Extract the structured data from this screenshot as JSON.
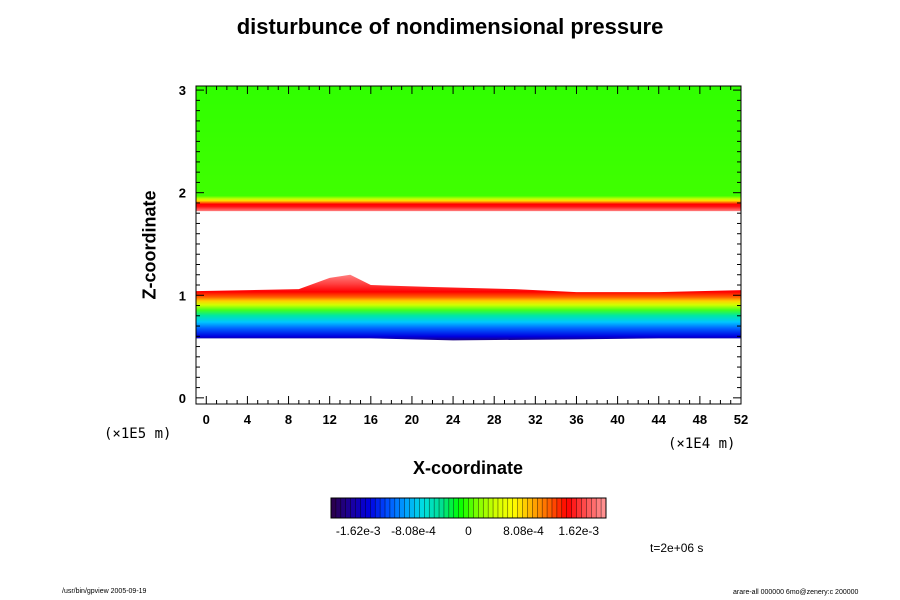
{
  "chart_data": {
    "type": "heatmap",
    "title": "disturbunce of nondimensional pressure",
    "xlabel": "X-coordinate",
    "ylabel": "Z-coordinate",
    "x_unit": "(×1E4  m)",
    "y_unit": "(×1E5  m)",
    "xlim": [
      -1,
      52
    ],
    "ylim": [
      -0.06,
      3.04
    ],
    "x_ticks": [
      0,
      4,
      8,
      12,
      16,
      20,
      24,
      28,
      32,
      36,
      40,
      44,
      48,
      52
    ],
    "y_ticks": [
      0,
      1,
      2,
      3
    ],
    "x_tick_labels": [
      "0",
      "4",
      "8",
      "12",
      "16",
      "20",
      "24",
      "28",
      "32",
      "36",
      "40",
      "44",
      "48",
      "52"
    ],
    "y_tick_labels": [
      "0",
      "1",
      "2",
      "3"
    ],
    "colorbar": {
      "range": [
        -0.00202,
        0.00202
      ],
      "tick_values": [
        -0.00162,
        -0.000808,
        0,
        0.000808,
        0.00162
      ],
      "tick_labels": [
        "-1.62e-3",
        "-8.08e-4",
        "0",
        "8.08e-4",
        "1.62e-3"
      ],
      "colors": [
        "#2a0050",
        "#1a00a0",
        "#0000e0",
        "#0050ff",
        "#00a0ff",
        "#00e0e0",
        "#00e090",
        "#00ff00",
        "#80ff00",
        "#d0ff00",
        "#ffff00",
        "#ffb000",
        "#ff6000",
        "#ff0000",
        "#ff5050",
        "#ff9090"
      ]
    },
    "bands": [
      {
        "z_range": [
          0.57,
          0.63
        ],
        "level": "-1.62e-3"
      },
      {
        "z_range": [
          0.63,
          0.8
        ],
        "level": "-8.08e-4 to 0"
      },
      {
        "z_range": [
          0.8,
          0.88
        ],
        "level": "8.08e-4"
      },
      {
        "z_range": [
          0.88,
          1.08
        ],
        "level": "1.62e-3"
      },
      {
        "z_range": [
          1.82,
          1.94
        ],
        "level": "1.62e-3"
      },
      {
        "z_range": [
          1.94,
          3.04
        ],
        "level": "0"
      }
    ]
  },
  "time_label": "t=2e+06 s",
  "footer_left": "/usr/bin/gpview 2005-09-19",
  "footer_right": "arare-all 000000 6mo@zenery:c 200000"
}
